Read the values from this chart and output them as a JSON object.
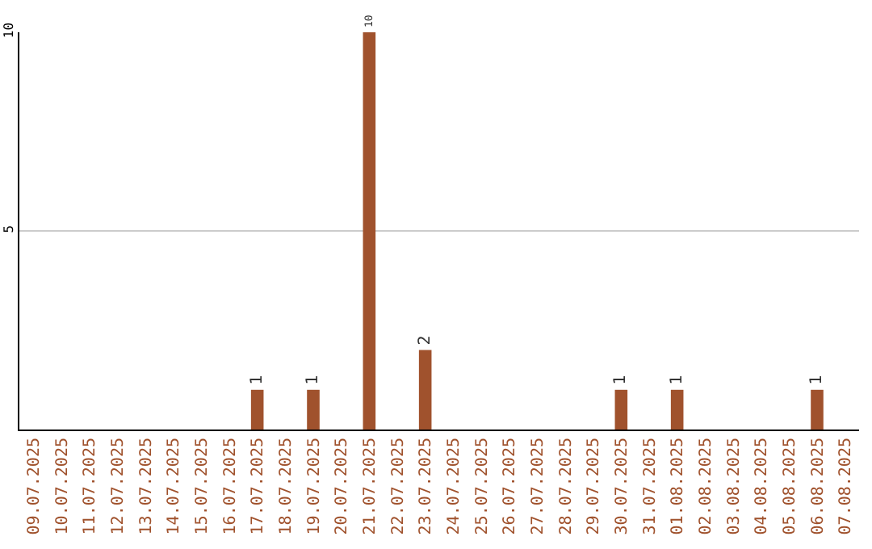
{
  "chart_data": {
    "type": "bar",
    "categories": [
      "09.07.2025",
      "10.07.2025",
      "11.07.2025",
      "12.07.2025",
      "13.07.2025",
      "14.07.2025",
      "15.07.2025",
      "16.07.2025",
      "17.07.2025",
      "18.07.2025",
      "19.07.2025",
      "20.07.2025",
      "21.07.2025",
      "22.07.2025",
      "23.07.2025",
      "24.07.2025",
      "25.07.2025",
      "26.07.2025",
      "27.07.2025",
      "28.07.2025",
      "29.07.2025",
      "30.07.2025",
      "31.07.2025",
      "01.08.2025",
      "02.08.2025",
      "03.08.2025",
      "04.08.2025",
      "05.08.2025",
      "06.08.2025",
      "07.08.2025"
    ],
    "values": [
      0,
      0,
      0,
      0,
      0,
      0,
      0,
      0,
      1,
      0,
      1,
      0,
      10,
      0,
      2,
      0,
      0,
      0,
      0,
      0,
      0,
      1,
      0,
      1,
      0,
      0,
      0,
      0,
      1,
      0
    ],
    "value_labels": [
      null,
      null,
      null,
      null,
      null,
      null,
      null,
      null,
      "1",
      null,
      "1",
      null,
      "10",
      null,
      "2",
      null,
      null,
      null,
      null,
      null,
      null,
      "1",
      null,
      "1",
      null,
      null,
      null,
      null,
      "1",
      null
    ],
    "color": "#a0522d",
    "ylim": [
      0,
      10
    ],
    "yticks": [
      5,
      10
    ],
    "grid": "y"
  }
}
